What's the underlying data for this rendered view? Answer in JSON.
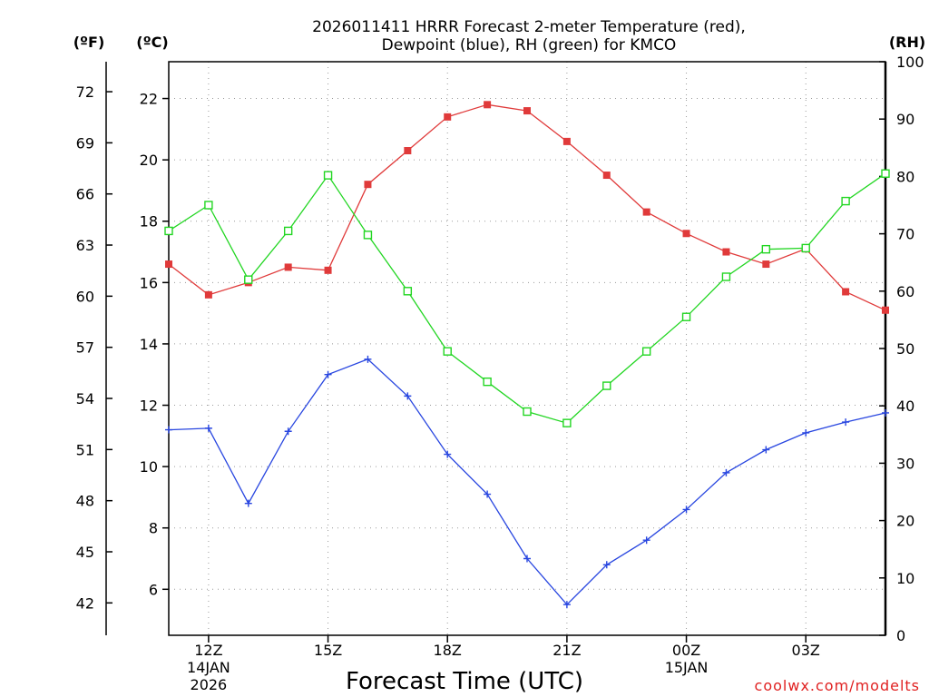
{
  "chart_data": {
    "type": "line",
    "title_line1": "2026011411 HRRR Forecast 2-meter Temperature (red),",
    "title_line2": "Dewpoint (blue), RH (green) for KMCO",
    "xlabel": "Forecast Time (UTC)",
    "credit": "coolwx.com/modelts",
    "units": {
      "fahrenheit": "(ºF)",
      "celsius": "(ºC)",
      "rh": "(RH)"
    },
    "x": [
      11,
      12,
      13,
      14,
      15,
      16,
      17,
      18,
      19,
      20,
      21,
      22,
      23,
      24,
      25,
      26,
      27,
      28,
      29
    ],
    "xlim": [
      11,
      29
    ],
    "x_ticks": [
      {
        "x": 12,
        "label": "12Z",
        "sub1": "14JAN",
        "sub2": "2026"
      },
      {
        "x": 15,
        "label": "15Z",
        "sub1": "",
        "sub2": ""
      },
      {
        "x": 18,
        "label": "18Z",
        "sub1": "",
        "sub2": ""
      },
      {
        "x": 21,
        "label": "21Z",
        "sub1": "",
        "sub2": ""
      },
      {
        "x": 24,
        "label": "00Z",
        "sub1": "15JAN",
        "sub2": ""
      },
      {
        "x": 27,
        "label": "03Z",
        "sub1": "",
        "sub2": ""
      }
    ],
    "celsius_axis": {
      "range": [
        4.5,
        23.2
      ],
      "ticks": [
        "6",
        "8",
        "10",
        "12",
        "14",
        "16",
        "18",
        "20",
        "22"
      ]
    },
    "fahrenheit_axis": {
      "ticks": [
        "42",
        "45",
        "48",
        "51",
        "54",
        "57",
        "60",
        "63",
        "66",
        "69",
        "72"
      ]
    },
    "rh_axis": {
      "range": [
        0,
        100
      ],
      "ticks": [
        "0",
        "10",
        "20",
        "30",
        "40",
        "50",
        "60",
        "70",
        "80",
        "90",
        "100"
      ]
    },
    "series": [
      {
        "name": "Temperature (°C)",
        "color": "#e03a3a",
        "axis": "celsius",
        "marker": "filled-square",
        "values": [
          16.6,
          15.6,
          16.0,
          16.5,
          16.4,
          19.2,
          20.3,
          21.4,
          21.8,
          21.6,
          20.6,
          19.5,
          18.3,
          17.6,
          17.0,
          16.6,
          17.1,
          15.7,
          15.1
        ]
      },
      {
        "name": "Dewpoint (°C)",
        "color": "#2846e0",
        "axis": "celsius",
        "marker": "plus",
        "values": [
          11.2,
          11.25,
          8.8,
          11.15,
          13.0,
          13.5,
          12.3,
          10.4,
          9.1,
          7.0,
          5.5,
          6.8,
          7.6,
          8.6,
          9.8,
          10.55,
          11.1,
          11.45,
          11.75
        ]
      },
      {
        "name": "Relative Humidity (%)",
        "color": "#22d622",
        "axis": "rh",
        "marker": "open-square",
        "values": [
          70.5,
          75.0,
          62.0,
          70.5,
          80.2,
          69.8,
          60.0,
          49.5,
          44.2,
          39.0,
          37.0,
          43.5,
          49.5,
          55.5,
          62.5,
          67.3,
          67.5,
          75.7,
          80.5
        ]
      }
    ]
  }
}
